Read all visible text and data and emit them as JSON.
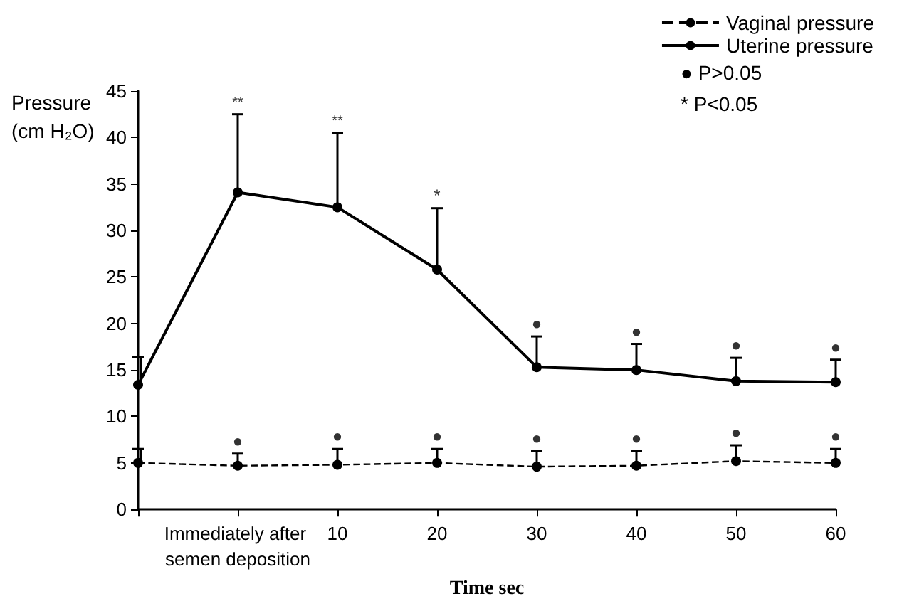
{
  "chart_data": {
    "type": "line",
    "xlabel": "Time sec",
    "ylabel": "Pressure (cm H₂O)",
    "categories": [
      null,
      "Immediately after semen deposition",
      "10",
      "20",
      "30",
      "40",
      "50",
      "60"
    ],
    "series": [
      {
        "name": "Vaginal pressure",
        "color": "#000000",
        "line_style": "dashed",
        "values": [
          5.0,
          4.7,
          4.8,
          5.0,
          4.6,
          4.7,
          5.2,
          5.0
        ],
        "errors": [
          [
            5.0,
            6.5
          ],
          [
            4.7,
            6.0
          ],
          [
            4.8,
            6.5
          ],
          [
            5.0,
            6.5
          ],
          [
            4.6,
            6.3
          ],
          [
            4.7,
            6.3
          ],
          [
            5.2,
            6.9
          ],
          [
            5.0,
            6.5
          ]
        ]
      },
      {
        "name": "Uterine pressure",
        "color": "#000000",
        "line_style": "solid",
        "values": [
          13.4,
          34.1,
          32.5,
          25.8,
          15.3,
          15.0,
          13.8,
          13.7
        ],
        "errors": [
          [
            13.4,
            16.4
          ],
          [
            34.1,
            42.5
          ],
          [
            32.5,
            40.5
          ],
          [
            25.8,
            32.4
          ],
          [
            15.3,
            18.6
          ],
          [
            15.0,
            17.8
          ],
          [
            13.8,
            16.3
          ],
          [
            13.7,
            16.1
          ]
        ]
      }
    ],
    "marker": "circle",
    "ylim": [
      0,
      45
    ],
    "yticks": [
      0,
      5,
      10,
      15,
      20,
      25,
      30,
      35,
      40,
      45
    ],
    "grid": false,
    "legend": "top right",
    "annotations": [
      "● P>0.05",
      "* P<0.05",
      {
        "text": "**",
        "x": "Immediately after semen deposition",
        "y": 42.5
      },
      {
        "text": "**",
        "x": "10",
        "y": 40.5
      },
      {
        "text": "*",
        "x": "20",
        "y": 32.4
      },
      {
        "text": "●",
        "x": "30",
        "y": 18.6
      },
      {
        "text": "●",
        "x": "40",
        "y": 17.8
      },
      {
        "text": "●",
        "x": "50",
        "y": 16.3
      },
      {
        "text": "●",
        "x": "60",
        "y": 16.1
      },
      {
        "text": "●",
        "x": "Immediately after semen deposition",
        "y": 6.0
      },
      {
        "text": "●",
        "x": "10",
        "y": 6.5
      },
      {
        "text": "●",
        "x": "20",
        "y": 6.5
      },
      {
        "text": "●",
        "x": "30",
        "y": 6.3
      },
      {
        "text": "●",
        "x": "40",
        "y": 6.3
      },
      {
        "text": "●",
        "x": "50",
        "y": 6.9
      },
      {
        "text": "●",
        "x": "60",
        "y": 6.5
      }
    ]
  }
}
